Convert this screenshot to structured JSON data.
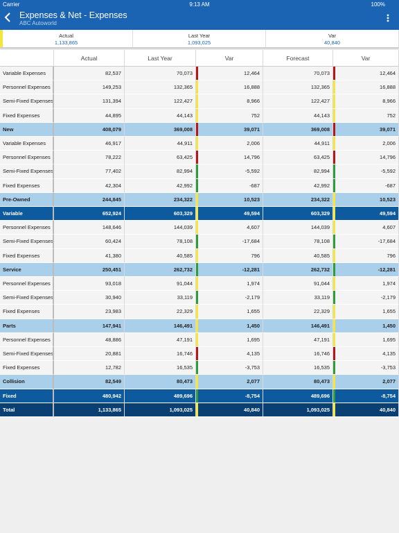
{
  "status_bar": {
    "carrier": "Carrier",
    "time": "9:13 AM",
    "battery": "100%"
  },
  "header": {
    "title": "Expenses & Net - Expenses",
    "subtitle": "ABC Autoworld"
  },
  "summary": [
    {
      "label": "Actual",
      "value": "1,133,865"
    },
    {
      "label": "Last Year",
      "value": "1,093,025"
    },
    {
      "label": "Var",
      "value": "40,840"
    }
  ],
  "table": {
    "columns": [
      "",
      "Actual",
      "Last Year",
      "Var",
      "Forecast",
      "Var"
    ],
    "rows": [
      {
        "cells": [
          "Variable Expenses",
          "82,537",
          "70,073",
          "12,464",
          "70,073",
          "12,464"
        ],
        "background": "#f4f4f4",
        "indicator": "#b3161c"
      },
      {
        "cells": [
          "Personnel Expenses",
          "149,253",
          "132,365",
          "16,888",
          "132,365",
          "16,888"
        ],
        "background": "#f4f4f4",
        "indicator": "#f3e63c"
      },
      {
        "cells": [
          "Semi-Fixed Expenses",
          "131,394",
          "122,427",
          "8,966",
          "122,427",
          "8,966"
        ],
        "background": "#f4f4f4",
        "indicator": "#f3e63c"
      },
      {
        "cells": [
          "Fixed Expenses",
          "44,895",
          "44,143",
          "752",
          "44,143",
          "752"
        ],
        "background": "#f4f4f4",
        "indicator": "#f3e63c"
      },
      {
        "cells": [
          "New",
          "408,079",
          "369,008",
          "39,071",
          "369,008",
          "39,071"
        ],
        "background": "#a9cfea",
        "indicator": "#b3161c"
      },
      {
        "cells": [
          "Variable Expenses",
          "46,917",
          "44,911",
          "2,006",
          "44,911",
          "2,006"
        ],
        "background": "#f4f4f4",
        "indicator": "#f3e63c"
      },
      {
        "cells": [
          "Personnel Expenses",
          "78,222",
          "63,425",
          "14,796",
          "63,425",
          "14,796"
        ],
        "background": "#f4f4f4",
        "indicator": "#b3161c"
      },
      {
        "cells": [
          "Semi-Fixed Expenses",
          "77,402",
          "82,994",
          "-5,592",
          "82,994",
          "-5,592"
        ],
        "background": "#f4f4f4",
        "indicator": "#2f9b3c"
      },
      {
        "cells": [
          "Fixed Expenses",
          "42,304",
          "42,992",
          "-687",
          "42,992",
          "-687"
        ],
        "background": "#f4f4f4",
        "indicator": "#2f9b3c"
      },
      {
        "cells": [
          "Pre-Owned",
          "244,845",
          "234,322",
          "10,523",
          "234,322",
          "10,523"
        ],
        "background": "#a9cfea",
        "indicator": "#f3e63c"
      },
      {
        "cells": [
          "Variable",
          "652,924",
          "603,329",
          "49,594",
          "603,329",
          "49,594"
        ],
        "background": "#0e5a9f",
        "indicator": "#f3e63c"
      },
      {
        "cells": [
          "Personnel Expenses",
          "148,646",
          "144,039",
          "4,607",
          "144,039",
          "4,607"
        ],
        "background": "#f4f4f4",
        "indicator": "#f3e63c"
      },
      {
        "cells": [
          "Semi-Fixed Expenses",
          "60,424",
          "78,108",
          "-17,684",
          "78,108",
          "-17,684"
        ],
        "background": "#f4f4f4",
        "indicator": "#2f9b3c"
      },
      {
        "cells": [
          "Fixed Expenses",
          "41,380",
          "40,585",
          "796",
          "40,585",
          "796"
        ],
        "background": "#f4f4f4",
        "indicator": "#f3e63c"
      },
      {
        "cells": [
          "Service",
          "250,451",
          "262,732",
          "-12,281",
          "262,732",
          "-12,281"
        ],
        "background": "#a9cfea",
        "indicator": "#2f9b3c"
      },
      {
        "cells": [
          "Personnel Expenses",
          "93,018",
          "91,044",
          "1,974",
          "91,044",
          "1,974"
        ],
        "background": "#f4f4f4",
        "indicator": "#f3e63c"
      },
      {
        "cells": [
          "Semi-Fixed Expenses",
          "30,940",
          "33,119",
          "-2,179",
          "33,119",
          "-2,179"
        ],
        "background": "#f4f4f4",
        "indicator": "#2f9b3c"
      },
      {
        "cells": [
          "Fixed Expenses",
          "23,983",
          "22,329",
          "1,655",
          "22,329",
          "1,655"
        ],
        "background": "#f4f4f4",
        "indicator": "#f3e63c"
      },
      {
        "cells": [
          "Parts",
          "147,941",
          "146,491",
          "1,450",
          "146,491",
          "1,450"
        ],
        "background": "#a9cfea",
        "indicator": "#f3e63c"
      },
      {
        "cells": [
          "Personnel Expenses",
          "48,886",
          "47,191",
          "1,695",
          "47,191",
          "1,695"
        ],
        "background": "#f4f4f4",
        "indicator": "#f3e63c"
      },
      {
        "cells": [
          "Semi-Fixed Expenses",
          "20,881",
          "16,746",
          "4,135",
          "16,746",
          "4,135"
        ],
        "background": "#f4f4f4",
        "indicator": "#b3161c"
      },
      {
        "cells": [
          "Fixed Expenses",
          "12,782",
          "16,535",
          "-3,753",
          "16,535",
          "-3,753"
        ],
        "background": "#f4f4f4",
        "indicator": "#2f9b3c"
      },
      {
        "cells": [
          "Collision",
          "82,549",
          "80,473",
          "2,077",
          "80,473",
          "2,077"
        ],
        "background": "#a9cfea",
        "indicator": "#f3e63c"
      },
      {
        "cells": [
          "Fixed",
          "480,942",
          "489,696",
          "-8,754",
          "489,696",
          "-8,754"
        ],
        "background": "#0e5a9f",
        "indicator": "#2f9b3c"
      },
      {
        "cells": [
          "Total",
          "1,133,865",
          "1,093,025",
          "40,840",
          "1,093,025",
          "40,840"
        ],
        "background": "#0a3f73",
        "indicator": "#f3e63c"
      }
    ]
  }
}
